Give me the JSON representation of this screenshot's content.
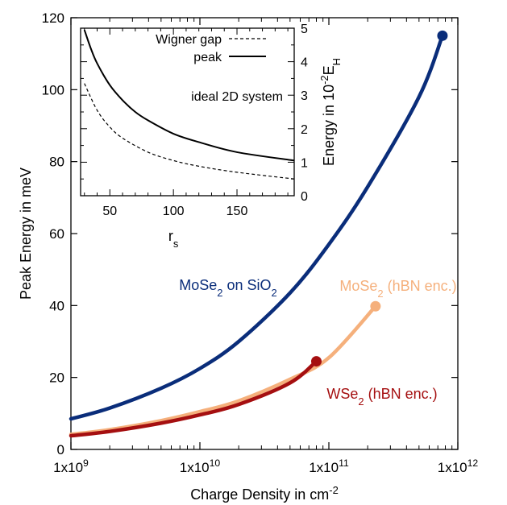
{
  "chart_data": [
    {
      "type": "line",
      "xlabel": "Charge Density in cm",
      "xlabel_sup": "-2",
      "ylabel": "Peak Energy in meV",
      "x_scale": "log",
      "xlim": [
        1000000000.0,
        1000000000000.0
      ],
      "ylim": [
        0,
        120
      ],
      "x_ticks": [
        {
          "value": 1000000000.0,
          "label": "1x10",
          "exp": "9"
        },
        {
          "value": 10000000000.0,
          "label": "1x10",
          "exp": "10"
        },
        {
          "value": 100000000000.0,
          "label": "1x10",
          "exp": "11"
        },
        {
          "value": 1000000000000.0,
          "label": "1x10",
          "exp": "12"
        }
      ],
      "y_ticks": [
        0,
        20,
        40,
        60,
        80,
        100,
        120
      ],
      "grid": false,
      "series": [
        {
          "key": "mose2_sio2",
          "label_parts": [
            "MoSe",
            "2",
            " on SiO",
            "2"
          ],
          "color": "#0a2d7a",
          "x": [
            1000000000.0,
            2000000000.0,
            5000000000.0,
            10000000000.0,
            20000000000.0,
            50000000000.0,
            100000000000.0,
            200000000000.0,
            500000000000.0,
            760000000000.0
          ],
          "y": [
            8.5,
            11.5,
            17.0,
            22.5,
            30.0,
            43.5,
            57.0,
            73.0,
            98.0,
            115.0
          ],
          "end_marker": {
            "x": 760000000000.0,
            "y": 115.0
          }
        },
        {
          "key": "mose2_hbn",
          "label_parts": [
            "MoSe",
            "2",
            " (hBN enc.)"
          ],
          "color": "#f5b07c",
          "x": [
            1000000000.0,
            2000000000.0,
            5000000000.0,
            10000000000.0,
            20000000000.0,
            50000000000.0,
            100000000000.0,
            230000000000.0
          ],
          "y": [
            4.2,
            5.5,
            8.0,
            10.5,
            13.5,
            19.5,
            25.5,
            39.8
          ],
          "end_marker": {
            "x": 230000000000.0,
            "y": 39.8
          }
        },
        {
          "key": "wse2_hbn",
          "label_parts": [
            "WSe",
            "2",
            " (hBN enc.)"
          ],
          "color": "#a50f10",
          "x": [
            1000000000.0,
            2000000000.0,
            5000000000.0,
            10000000000.0,
            20000000000.0,
            50000000000.0,
            80000000000.0
          ],
          "y": [
            3.8,
            5.0,
            7.3,
            9.6,
            12.5,
            18.5,
            24.5
          ],
          "end_marker": {
            "x": 80000000000.0,
            "y": 24.5
          }
        }
      ]
    },
    {
      "type": "line",
      "title": "ideal 2D system",
      "xlabel": "r",
      "xlabel_sub": "s",
      "ylabel_prefix": "Energy in 10",
      "ylabel_sup": "-2",
      "ylabel_unit": "E",
      "ylabel_sub": "H",
      "xlim": [
        27,
        195
      ],
      "ylim": [
        0,
        5
      ],
      "x_ticks": [
        50,
        100,
        150
      ],
      "y_ticks": [
        0,
        1,
        2,
        3,
        4,
        5
      ],
      "legend_position": "top-left",
      "series": [
        {
          "name": "Wigner gap",
          "dash": "dashed",
          "color": "#000000",
          "x": [
            30,
            40,
            50,
            60,
            80,
            100,
            120,
            150,
            195
          ],
          "y": [
            3.35,
            2.55,
            2.05,
            1.72,
            1.3,
            1.05,
            0.88,
            0.7,
            0.5
          ]
        },
        {
          "name": "peak",
          "dash": "solid",
          "color": "#000000",
          "x": [
            30,
            35,
            40,
            50,
            60,
            70,
            80,
            100,
            120,
            150,
            195
          ],
          "y": [
            4.95,
            4.4,
            3.95,
            3.3,
            2.85,
            2.5,
            2.25,
            1.85,
            1.6,
            1.3,
            1.05
          ]
        }
      ]
    }
  ]
}
